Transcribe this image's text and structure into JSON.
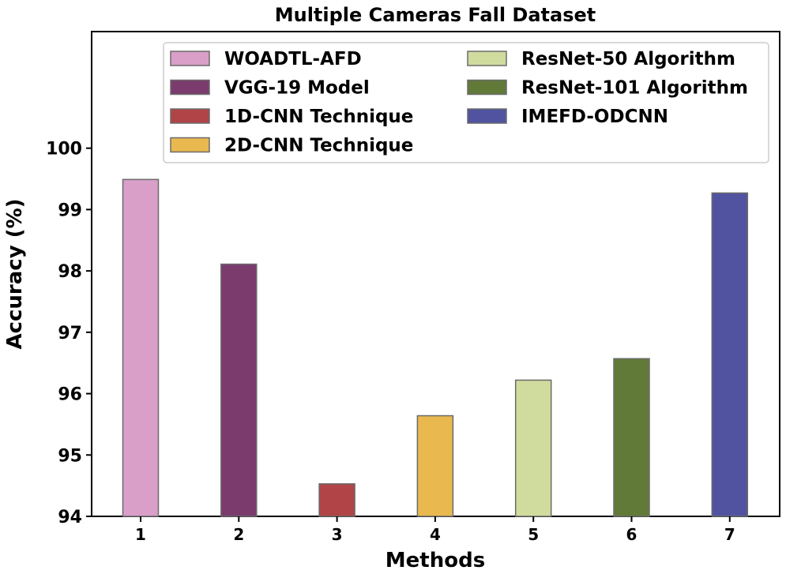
{
  "chart_data": {
    "type": "bar",
    "title": "Multiple Cameras Fall Dataset",
    "xlabel": "Methods",
    "ylabel": "Accuracy (%)",
    "categories": [
      "1",
      "2",
      "3",
      "4",
      "5",
      "6",
      "7"
    ],
    "ylim": [
      94,
      101.9
    ],
    "yticks": [
      94,
      95,
      96,
      97,
      98,
      99,
      100
    ],
    "grid": false,
    "legend_position": "top",
    "series": [
      {
        "name": "WOADTL-AFD",
        "category": "1",
        "value": 99.49,
        "color": "#d99fc8"
      },
      {
        "name": "VGG-19 Model",
        "category": "2",
        "value": 98.11,
        "color": "#7b3b6d"
      },
      {
        "name": "1D-CNN Technique",
        "category": "3",
        "value": 94.53,
        "color": "#b04447"
      },
      {
        "name": "2D-CNN Technique",
        "category": "4",
        "value": 95.64,
        "color": "#e9b84f"
      },
      {
        "name": "ResNet-50 Algorithm",
        "category": "5",
        "value": 96.22,
        "color": "#d0dc9e"
      },
      {
        "name": "ResNet-101 Algorithm",
        "category": "6",
        "value": 96.57,
        "color": "#617a38"
      },
      {
        "name": "IMEFD-ODCNN",
        "category": "7",
        "value": 99.27,
        "color": "#5153a0"
      }
    ]
  }
}
